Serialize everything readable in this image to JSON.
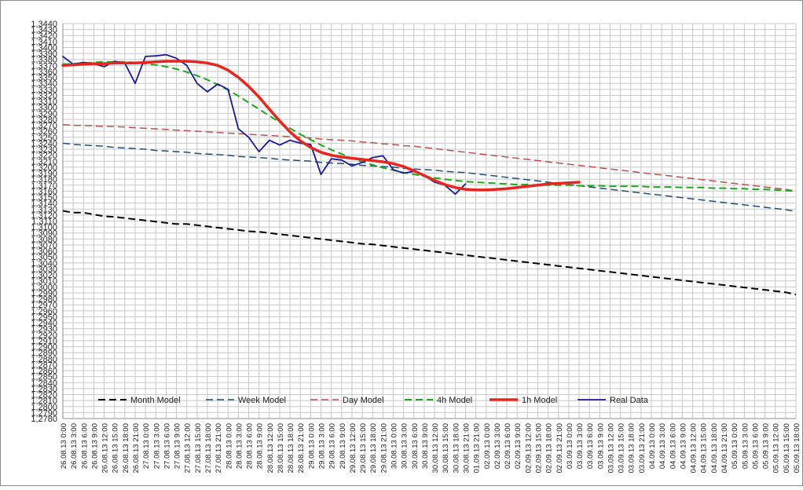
{
  "chart_data": {
    "type": "line",
    "title": "",
    "xlabel": "",
    "ylabel": "",
    "ylim": [
      1.278,
      1.344
    ],
    "y_tick_step": 0.001,
    "y_decimal_separator": ",",
    "grid": true,
    "legend_position": "bottom-left inside plot",
    "x": [
      "26.08.13 0:00",
      "26.08.13 3:00",
      "26.08.13 6:00",
      "26.08.13 9:00",
      "26.08.13 12:00",
      "26.08.13 15:00",
      "26.08.13 18:00",
      "26.08.13 21:00",
      "27.08.13 0:00",
      "27.08.13 3:00",
      "27.08.13 6:00",
      "27.08.13 9:00",
      "27.08.13 12:00",
      "27.08.13 15:00",
      "27.08.13 18:00",
      "27.08.13 21:00",
      "28.08.13 0:00",
      "28.08.13 3:00",
      "28.08.13 6:00",
      "28.08.13 9:00",
      "28.08.13 12:00",
      "28.08.13 15:00",
      "28.08.13 18:00",
      "28.08.13 21:00",
      "29.08.13 0:00",
      "29.08.13 3:00",
      "29.08.13 6:00",
      "29.08.13 9:00",
      "29.08.13 12:00",
      "29.08.13 15:00",
      "29.08.13 18:00",
      "29.08.13 21:00",
      "30.08.13 0:00",
      "30.08.13 3:00",
      "30.08.13 6:00",
      "30.08.13 9:00",
      "30.08.13 12:00",
      "30.08.13 15:00",
      "30.08.13 18:00",
      "30.08.13 21:00",
      "01.09.13 21:00",
      "02.09.13 0:00",
      "02.09.13 3:00",
      "02.09.13 6:00",
      "02.09.13 9:00",
      "02.09.13 12:00",
      "02.09.13 15:00",
      "02.09.13 18:00",
      "02.09.13 21:00",
      "03.09.13 0:00",
      "03.09.13 3:00",
      "03.09.13 6:00",
      "03.09.13 9:00",
      "03.09.13 12:00",
      "03.09.13 15:00",
      "03.09.13 18:00",
      "03.09.13 21:00",
      "04.09.13 0:00",
      "04.09.13 3:00",
      "04.09.13 6:00",
      "04.09.13 9:00",
      "04.09.13 12:00",
      "04.09.13 15:00",
      "04.09.13 18:00",
      "04.09.13 21:00",
      "05.09.13 0:00",
      "05.09.13 3:00",
      "05.09.13 6:00",
      "05.09.13 9:00",
      "05.09.13 12:00",
      "05.09.13 15:00",
      "05.09.13 18:00"
    ],
    "series": [
      {
        "name": "Month Model",
        "color": "#000000",
        "style": "dashed",
        "width": 2,
        "values": [
          1.3127,
          1.3124,
          1.3124,
          1.3121,
          1.3118,
          1.3117,
          1.3115,
          1.3113,
          1.3111,
          1.3109,
          1.3107,
          1.3105,
          1.3105,
          1.3103,
          1.3101,
          1.3099,
          1.3097,
          1.3095,
          1.3093,
          1.3092,
          1.309,
          1.3088,
          1.3086,
          1.3084,
          1.3082,
          1.308,
          1.3078,
          1.3076,
          1.3074,
          1.3072,
          1.3071,
          1.3069,
          1.3067,
          1.3065,
          1.3063,
          1.3061,
          1.3059,
          1.3057,
          1.3055,
          1.3053,
          1.3051,
          1.3049,
          1.3047,
          1.3045,
          1.3043,
          1.3041,
          1.3039,
          1.3037,
          1.3035,
          1.3033,
          1.3031,
          1.3029,
          1.3027,
          1.3025,
          1.3023,
          1.3021,
          1.3019,
          1.3017,
          1.3015,
          1.3013,
          1.3011,
          1.3009,
          1.3007,
          1.3005,
          1.3003,
          1.3001,
          1.2999,
          1.2997,
          1.2995,
          1.2993,
          1.2991,
          1.2987
        ]
      },
      {
        "name": "Week Model",
        "color": "#1f4e79",
        "style": "dashed",
        "width": 1.5,
        "values": [
          1.324,
          1.3238,
          1.3237,
          1.3236,
          1.3235,
          1.3233,
          1.3232,
          1.3231,
          1.323,
          1.3228,
          1.3227,
          1.3226,
          1.3225,
          1.3223,
          1.3222,
          1.3221,
          1.322,
          1.3218,
          1.3217,
          1.3216,
          1.3215,
          1.3213,
          1.3212,
          1.3211,
          1.321,
          1.3208,
          1.3207,
          1.3206,
          1.3205,
          1.3203,
          1.3202,
          1.3201,
          1.32,
          1.3198,
          1.3197,
          1.3196,
          1.3195,
          1.3193,
          1.3192,
          1.3191,
          1.3189,
          1.3187,
          1.3185,
          1.3183,
          1.3181,
          1.3179,
          1.3177,
          1.3175,
          1.3173,
          1.3171,
          1.3169,
          1.3167,
          1.3165,
          1.3163,
          1.3161,
          1.3159,
          1.3157,
          1.3155,
          1.3153,
          1.3151,
          1.3149,
          1.3147,
          1.3145,
          1.3143,
          1.3141,
          1.3139,
          1.3137,
          1.3135,
          1.3133,
          1.3131,
          1.3129,
          1.3126
        ]
      },
      {
        "name": "Day Model",
        "color": "#c0504d",
        "style": "dashed",
        "width": 1.5,
        "values": [
          1.3271,
          1.327,
          1.327,
          1.3269,
          1.3268,
          1.3268,
          1.3267,
          1.3266,
          1.3265,
          1.3264,
          1.3263,
          1.3262,
          1.3261,
          1.326,
          1.3259,
          1.3258,
          1.3257,
          1.3256,
          1.3255,
          1.3254,
          1.3253,
          1.3252,
          1.3251,
          1.325,
          1.3249,
          1.3247,
          1.3246,
          1.3245,
          1.3244,
          1.3242,
          1.3241,
          1.3239,
          1.3238,
          1.3236,
          1.3235,
          1.3233,
          1.3231,
          1.3229,
          1.3227,
          1.3225,
          1.3223,
          1.3221,
          1.3219,
          1.3217,
          1.3215,
          1.3213,
          1.3211,
          1.3209,
          1.3207,
          1.3205,
          1.3203,
          1.3201,
          1.3199,
          1.3197,
          1.3195,
          1.3193,
          1.3191,
          1.3189,
          1.3187,
          1.3185,
          1.3183,
          1.3181,
          1.3179,
          1.3177,
          1.3175,
          1.3173,
          1.3171,
          1.3169,
          1.3167,
          1.3165,
          1.3163,
          1.316
        ]
      },
      {
        "name": "4h Model",
        "color": "#1aaa1a",
        "style": "dashed",
        "width": 2,
        "values": [
          1.3372,
          1.3373,
          1.3374,
          1.3375,
          1.3376,
          1.3376,
          1.3376,
          1.3375,
          1.3373,
          1.3371,
          1.3368,
          1.3364,
          1.3359,
          1.3353,
          1.3346,
          1.3338,
          1.3329,
          1.3319,
          1.3308,
          1.3297,
          1.3286,
          1.3275,
          1.3265,
          1.3255,
          1.3246,
          1.3237,
          1.3229,
          1.3222,
          1.3215,
          1.3209,
          1.3204,
          1.3199,
          1.3195,
          1.3191,
          1.3188,
          1.3185,
          1.3182,
          1.318,
          1.3178,
          1.3176,
          1.3175,
          1.3174,
          1.3173,
          1.3172,
          1.3171,
          1.3171,
          1.317,
          1.317,
          1.317,
          1.317,
          1.3169,
          1.3169,
          1.3169,
          1.3168,
          1.3168,
          1.3168,
          1.3168,
          1.3167,
          1.3167,
          1.3167,
          1.3166,
          1.3166,
          1.3166,
          1.3165,
          1.3165,
          1.3164,
          1.3164,
          1.3163,
          1.3163,
          1.3162,
          1.3161,
          1.316
        ]
      },
      {
        "name": "1h Model",
        "color": "#e8251e",
        "style": "solid",
        "width": 3.5,
        "values": [
          1.337,
          1.3371,
          1.3372,
          1.3373,
          1.3373,
          1.3374,
          1.3374,
          1.3374,
          1.3375,
          1.3376,
          1.3377,
          1.3377,
          1.3377,
          1.3376,
          1.3374,
          1.337,
          1.3362,
          1.335,
          1.3335,
          1.3317,
          1.3297,
          1.3277,
          1.3259,
          1.3244,
          1.3233,
          1.3225,
          1.322,
          1.3217,
          1.3215,
          1.3213,
          1.3211,
          1.3209,
          1.3206,
          1.3201,
          1.3194,
          1.3186,
          1.3178,
          1.3171,
          1.3166,
          1.3163,
          1.3162,
          1.3162,
          1.3163,
          1.3164,
          1.3166,
          1.3168,
          1.317,
          1.3172,
          1.3173,
          1.3174,
          1.3175,
          null,
          null,
          null,
          null,
          null,
          null,
          null,
          null,
          null,
          null,
          null,
          null,
          null,
          null,
          null,
          null,
          null,
          null,
          null,
          null,
          null
        ]
      },
      {
        "name": "Real Data",
        "color": "#1a1a9c",
        "style": "solid",
        "width": 1.8,
        "values": [
          1.3385,
          1.3372,
          1.3375,
          1.3373,
          1.3368,
          1.3377,
          1.3374,
          1.334,
          1.3385,
          1.3386,
          1.3388,
          1.3382,
          1.337,
          1.334,
          1.3326,
          1.3339,
          1.333,
          1.3264,
          1.325,
          1.3226,
          1.3245,
          1.3237,
          1.3245,
          1.324,
          1.3238,
          1.3188,
          1.3214,
          1.3212,
          1.3202,
          1.3208,
          1.3216,
          1.3219,
          1.3196,
          1.319,
          1.3193,
          1.3186,
          1.3175,
          1.317,
          1.3155,
          1.3172,
          null,
          null,
          null,
          null,
          null,
          null,
          null,
          null,
          null,
          null,
          null,
          null,
          null,
          null,
          null,
          null,
          null,
          null,
          null,
          null,
          null,
          null,
          null,
          null,
          null,
          null,
          null,
          null,
          null,
          null,
          null,
          null
        ]
      }
    ]
  }
}
